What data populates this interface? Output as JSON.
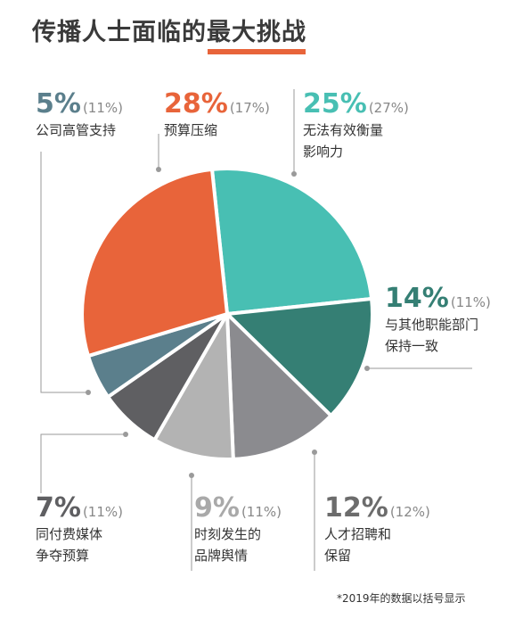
{
  "title": "传播人士面临的最大挑战",
  "footnote": "*2019年的数据以括号显示",
  "colors": {
    "title_bar": "#e8643a",
    "promo_fee": "#e8643a",
    "measure": "#48bfb3",
    "align": "#357f74",
    "talent": "#8b8b8f",
    "reputation": "#b3b3b3",
    "media": "#5f5f62",
    "exec": "#5b7f8c"
  },
  "chart_data": {
    "type": "pie",
    "start_angle_deg": -6,
    "order": "clockwise",
    "slices": [
      {
        "key": "measure",
        "pct_label": "25%",
        "prev_label": "(27%)",
        "desc": [
          "无法有效衡量",
          "影响力"
        ],
        "value": 25,
        "prev": 27,
        "pct_color": "#48bfb3",
        "color": "#48bfb3"
      },
      {
        "key": "align",
        "pct_label": "14%",
        "prev_label": "(11%)",
        "desc": [
          "与其他职能部门",
          "保持一致"
        ],
        "value": 14,
        "prev": 11,
        "pct_color": "#357f74",
        "color": "#357f74"
      },
      {
        "key": "talent",
        "pct_label": "12%",
        "prev_label": "(12%)",
        "desc": [
          "人才招聘和",
          "保留"
        ],
        "value": 12,
        "prev": 12,
        "pct_color": "#6c6c6c",
        "color": "#8b8b8f"
      },
      {
        "key": "reputation",
        "pct_label": "9%",
        "prev_label": "(11%)",
        "desc": [
          "时刻发生的",
          "品牌舆情"
        ],
        "value": 9,
        "prev": 11,
        "pct_color": "#a9a9a9",
        "color": "#b3b3b3"
      },
      {
        "key": "media",
        "pct_label": "7%",
        "prev_label": "(11%)",
        "desc": [
          "同付费媒体",
          "争夺预算"
        ],
        "value": 7,
        "prev": 11,
        "pct_color": "#5f5f62",
        "color": "#5f5f62"
      },
      {
        "key": "exec",
        "pct_label": "5%",
        "prev_label": "(11%)",
        "desc": [
          "公司高管支持"
        ],
        "value": 5,
        "prev": 11,
        "pct_color": "#5b7f8c",
        "color": "#5b7f8c"
      },
      {
        "key": "budget",
        "pct_label": "28%",
        "prev_label": "(17%)",
        "desc": [
          "预算压缩"
        ],
        "value": 28,
        "prev": 17,
        "pct_color": "#e8643a",
        "color": "#e8643a"
      }
    ]
  }
}
